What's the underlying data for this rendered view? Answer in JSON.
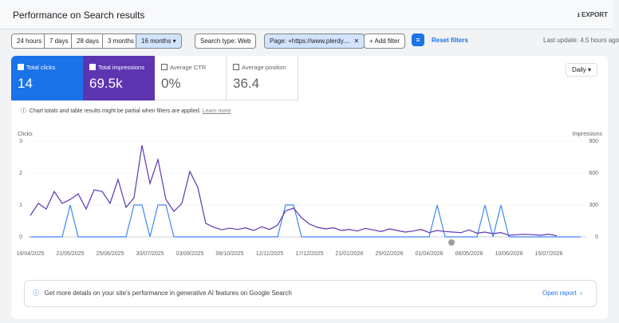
{
  "header": {
    "title": "Performance on Search results",
    "export": "EXPORT"
  },
  "filters": {
    "date_ranges": [
      "24 hours",
      "7 days",
      "28 days",
      "3 months",
      "16 months"
    ],
    "search_type": "Search type: Web",
    "page_filter": "Page: +https://www.plerdy....",
    "add_filter": "Add filter",
    "reset": "Reset filters",
    "last_update": "Last update: 4.5 hours ago"
  },
  "metrics": [
    {
      "label": "Total clicks",
      "value": "14"
    },
    {
      "label": "Total impressions",
      "value": "69.5k"
    },
    {
      "label": "Average CTR",
      "value": "0%"
    },
    {
      "label": "Average position",
      "value": "36.4"
    }
  ],
  "granularity": "Daily",
  "notice": {
    "text": "Chart totals and table results might be partial when filters are applied.",
    "link": "Learn more"
  },
  "banner": {
    "text": "Get more details on your site's performance in generative AI features on Google Search",
    "link": "Open report"
  },
  "chart_data": {
    "type": "line",
    "y_label": "Clicks",
    "y2_label": "Impressions",
    "categories": [
      "16/04/2025",
      null,
      null,
      null,
      null,
      "21/05/2025",
      null,
      null,
      null,
      null,
      "25/06/2025",
      null,
      null,
      null,
      null,
      "30/07/2025",
      null,
      null,
      null,
      null,
      "03/09/2025",
      null,
      null,
      null,
      null,
      "08/10/2025",
      null,
      null,
      null,
      null,
      "12/11/2025",
      null,
      null,
      null,
      null,
      "17/12/2025",
      null,
      null,
      null,
      null,
      "21/01/2026",
      null,
      null,
      null,
      null,
      "25/02/2026",
      null,
      null,
      null,
      null,
      "01/04/2026",
      null,
      null,
      null,
      null,
      "06/05/2026",
      null,
      null,
      null,
      null,
      "10/06/2026",
      null,
      null,
      null,
      null,
      "15/07/2026",
      null,
      null,
      null,
      null
    ],
    "ylim": [
      0,
      3
    ],
    "yticks": [
      0,
      1,
      2,
      3
    ],
    "y2lim": [
      0,
      900
    ],
    "y2ticks": [
      0,
      300,
      600,
      900
    ],
    "series": [
      {
        "color": "#4285f4",
        "values": [
          0,
          0,
          0,
          0,
          0,
          1,
          0,
          0,
          0,
          0,
          0,
          0,
          0,
          1,
          1,
          0,
          1,
          1,
          0,
          0,
          0,
          0,
          0,
          0,
          0,
          0,
          0,
          0,
          0,
          0,
          0,
          0,
          1,
          1,
          0,
          0,
          0,
          0,
          0,
          0,
          0,
          0,
          0,
          0,
          0,
          0,
          0,
          0,
          0,
          0,
          0,
          1,
          0,
          0,
          0,
          0,
          0,
          1,
          0,
          1,
          0,
          0,
          0,
          0,
          0,
          0,
          0,
          0,
          0,
          0
        ]
      },
      {
        "color": "#5e35b1",
        "axis": "y2",
        "values": [
          200,
          315,
          262,
          427,
          315,
          352,
          405,
          262,
          442,
          427,
          315,
          540,
          277,
          367,
          862,
          502,
          727,
          352,
          240,
          315,
          615,
          465,
          127,
          90,
          67,
          82,
          70,
          85,
          60,
          95,
          70,
          110,
          245,
          270,
          180,
          120,
          90,
          75,
          85,
          60,
          70,
          55,
          80,
          65,
          50,
          75,
          60,
          45,
          55,
          70,
          40,
          60,
          50,
          45,
          40,
          65,
          35,
          45,
          30,
          40,
          15,
          20,
          25,
          20,
          15,
          25,
          10,
          null,
          null,
          null
        ]
      }
    ]
  }
}
